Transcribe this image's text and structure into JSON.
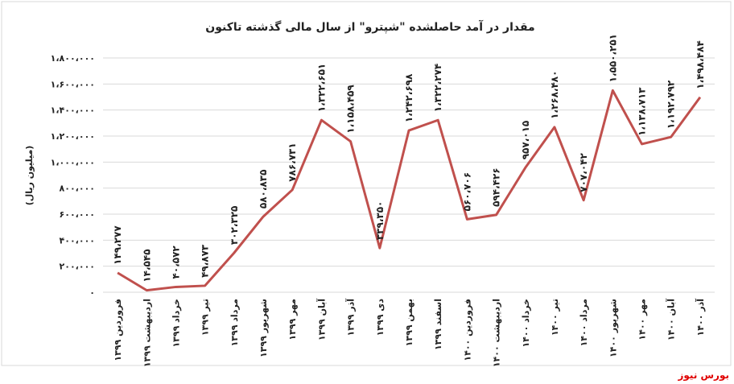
{
  "chart_data": {
    "type": "line",
    "title": "مقدار در آمد حاصلشده \"شپترو\" از سال مالی گذشته تاکنون",
    "y_label": "(میلیون ریال)",
    "source": "بورس نیوز",
    "categories": [
      "فروردین ۱۳۹۹",
      "اردیبهشت ۱۳۹۹",
      "خرداد ۱۳۹۹",
      "تیر ۱۳۹۹",
      "مرداد ۱۳۹۹",
      "شهریور ۱۳۹۹",
      "مهر ۱۳۹۹",
      "آبان ۱۳۹۹",
      "آذر ۱۳۹۹",
      "دی ۱۳۹۹",
      "بهمن ۱۳۹۹",
      "اسفند ۱۳۹۹",
      "فروردین ۱۴۰۰",
      "اردیبهشت ۱۴۰۰",
      "خرداد ۱۴۰۰",
      "تیر ۱۴۰۰",
      "مرداد ۱۴۰۰",
      "شهریور ۱۴۰۰",
      "مهر ۱۴۰۰",
      "آبان ۱۴۰۰",
      "آذر ۱۴۰۰"
    ],
    "values": [
      149277,
      14545,
      40572,
      49873,
      302325,
      580835,
      786731,
      1322651,
      1158459,
      339350,
      1242698,
      1322274,
      560706,
      594426,
      957015,
      1268480,
      707042,
      1550251,
      1138713,
      1192792,
      1498484
    ],
    "value_labels": [
      "۱۴۹،۲۷۷",
      "۱۴،۵۴۵",
      "۴۰،۵۷۲",
      "۴۹،۸۷۳",
      "۳۰۲،۳۲۵",
      "۵۸۰،۸۳۵",
      "۷۸۶،۷۳۱",
      "۱،۳۲۲،۶۵۱",
      "۱،۱۵۸،۴۵۹",
      "۳۳۹،۳۵۰",
      "۱،۲۴۲،۶۹۸",
      "۱،۳۲۲،۲۷۴",
      "۵۶۰،۷۰۶",
      "۵۹۴،۴۲۶",
      "۹۵۷،۰۱۵",
      "۱،۲۶۸،۴۸۰",
      "۷۰۷،۰۴۲",
      "۱،۵۵۰،۲۵۱",
      "۱،۱۳۸،۷۱۳",
      "۱،۱۹۲،۷۹۲",
      "۱،۴۹۸،۴۸۴"
    ],
    "color": "#c0504d",
    "ylim": [
      0,
      1800000
    ],
    "yticks": [
      {
        "value": 0,
        "label": "۰"
      },
      {
        "value": 200000,
        "label": "۲۰۰،۰۰۰"
      },
      {
        "value": 400000,
        "label": "۴۰۰،۰۰۰"
      },
      {
        "value": 600000,
        "label": "۶۰۰،۰۰۰"
      },
      {
        "value": 800000,
        "label": "۸۰۰،۰۰۰"
      },
      {
        "value": 1000000,
        "label": "۱،۰۰۰،۰۰۰"
      },
      {
        "value": 1200000,
        "label": "۱،۲۰۰،۰۰۰"
      },
      {
        "value": 1400000,
        "label": "۱،۴۰۰،۰۰۰"
      },
      {
        "value": 1600000,
        "label": "۱،۶۰۰،۰۰۰"
      },
      {
        "value": 1800000,
        "label": "۱،۸۰۰،۰۰۰"
      }
    ],
    "grid": true
  }
}
